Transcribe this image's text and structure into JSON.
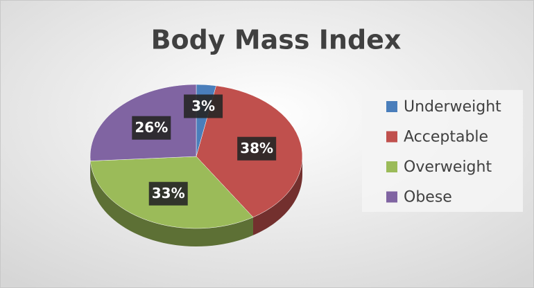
{
  "chart_data": {
    "type": "pie",
    "title": "Body Mass Index",
    "categories": [
      "Underweight",
      "Acceptable",
      "Overweight",
      "Obese"
    ],
    "values": [
      3,
      38,
      33,
      26
    ],
    "value_labels": [
      "3%",
      "38%",
      "33%",
      "26%"
    ],
    "colors": [
      "#4a7ebb",
      "#c0504d",
      "#9bbb59",
      "#8064a2"
    ],
    "legend": "right"
  }
}
